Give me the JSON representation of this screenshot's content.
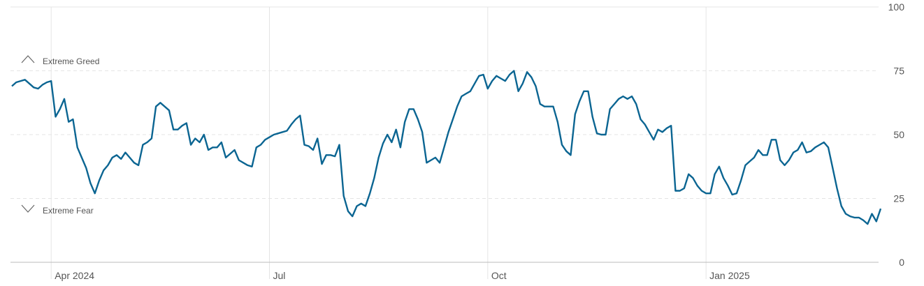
{
  "chart_data": {
    "type": "line",
    "annotations": [
      "Extreme Greed",
      "Extreme Fear"
    ],
    "color": "#0b6592",
    "values": [
      69,
      70.5,
      71,
      71.5,
      70,
      68.5,
      68,
      69.5,
      70.5,
      71,
      57,
      60,
      64,
      55,
      56,
      45,
      41,
      37,
      31,
      27,
      32,
      36,
      38,
      41,
      42,
      40.5,
      43,
      41,
      39,
      38,
      46,
      47,
      48.5,
      61,
      62.5,
      61,
      59.5,
      52,
      52,
      53.5,
      54.5,
      46,
      48.5,
      47,
      50,
      44,
      45,
      45,
      47,
      41,
      42.5,
      44,
      40,
      39,
      38,
      37.5,
      45,
      46,
      48,
      49,
      50,
      50.5,
      51,
      51.5,
      54,
      56,
      57.5,
      46,
      45.5,
      44,
      48.5,
      38.5,
      42,
      42,
      41.5,
      46,
      26,
      20,
      18,
      22,
      23,
      22,
      27,
      33,
      41,
      46.5,
      50,
      47,
      52,
      45,
      55,
      60,
      60,
      56,
      51,
      39,
      40,
      41,
      39,
      45,
      51,
      56,
      61,
      65,
      66,
      67,
      70,
      73,
      73.5,
      68,
      71,
      73,
      72,
      71,
      73.5,
      75,
      67,
      70,
      74.5,
      72.5,
      69,
      62,
      61,
      61,
      61,
      55,
      46,
      43.5,
      42,
      58,
      63,
      67,
      67,
      57,
      50.5,
      50,
      50,
      60,
      62,
      64,
      65,
      64,
      65,
      62,
      56,
      54,
      51,
      48,
      52,
      51,
      52.5,
      53.5,
      28,
      28,
      29,
      34.5,
      33,
      30,
      28,
      27,
      27,
      34.5,
      37.5,
      33,
      30,
      26.5,
      27,
      32,
      38,
      39.5,
      41,
      44,
      42,
      42,
      48,
      48,
      40,
      38,
      40,
      43,
      44,
      47,
      43,
      43.5,
      45,
      46,
      47,
      45,
      37,
      29,
      22,
      19,
      18,
      17.5,
      17.5,
      16.5,
      15,
      19,
      16,
      21
    ],
    "xlim": [
      0,
      199
    ],
    "xticks": [
      {
        "value": 9,
        "label": "Apr 2024"
      },
      {
        "value": 59,
        "label": "Jul"
      },
      {
        "value": 109,
        "label": "Oct"
      },
      {
        "value": 159,
        "label": "Jan 2025"
      }
    ],
    "ylim": [
      0,
      100
    ],
    "yticks": [
      0,
      25,
      50,
      75,
      100
    ],
    "grid": true
  }
}
